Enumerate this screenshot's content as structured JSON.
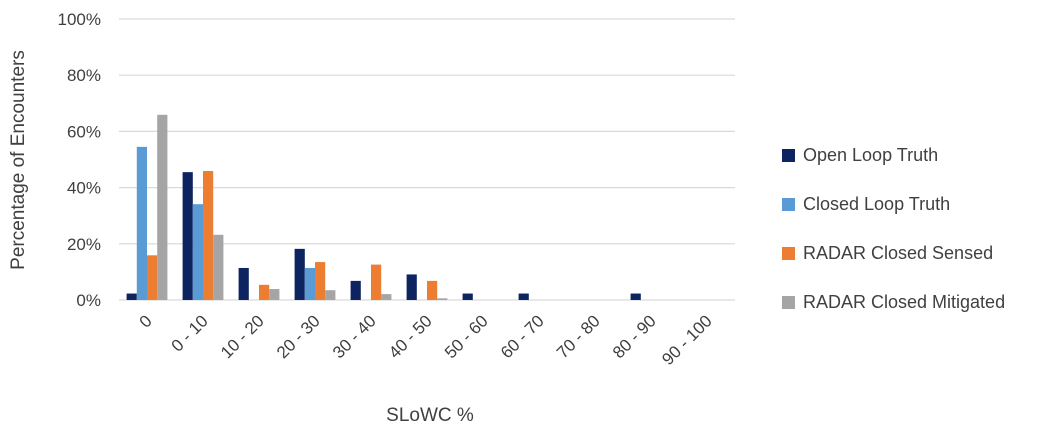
{
  "chart_data": {
    "type": "bar",
    "title": "",
    "xlabel": "SLoWC %",
    "ylabel": "Percentage of Encounters",
    "ylim": [
      0,
      100
    ],
    "yticks": [
      "0%",
      "20%",
      "40%",
      "60%",
      "80%",
      "100%"
    ],
    "grid": true,
    "legend_position": "right",
    "categories": [
      "0",
      "0 - 10",
      "10 - 20",
      "20 - 30",
      "30 - 40",
      "40 - 50",
      "50 - 60",
      "60 - 70",
      "70 - 80",
      "80 - 90",
      "90 - 100"
    ],
    "series": [
      {
        "name": "Open Loop Truth",
        "color": "#0d2461",
        "values": [
          2.3,
          45.5,
          11.4,
          18.2,
          6.8,
          9.1,
          2.3,
          2.3,
          0,
          2.3,
          0
        ]
      },
      {
        "name": "Closed Loop Truth",
        "color": "#5b9bd5",
        "values": [
          54.5,
          34.1,
          0,
          11.4,
          0,
          0,
          0,
          0,
          0,
          0,
          0
        ]
      },
      {
        "name": "RADAR Closed Sensed",
        "color": "#ed7d31",
        "values": [
          15.9,
          45.9,
          5.4,
          13.5,
          12.6,
          6.8,
          0,
          0,
          0,
          0,
          0
        ]
      },
      {
        "name": "RADAR Closed Mitigated",
        "color": "#a5a5a5",
        "values": [
          65.9,
          23.2,
          3.9,
          3.5,
          2.1,
          0.6,
          0,
          0,
          0,
          0,
          0
        ]
      }
    ]
  }
}
